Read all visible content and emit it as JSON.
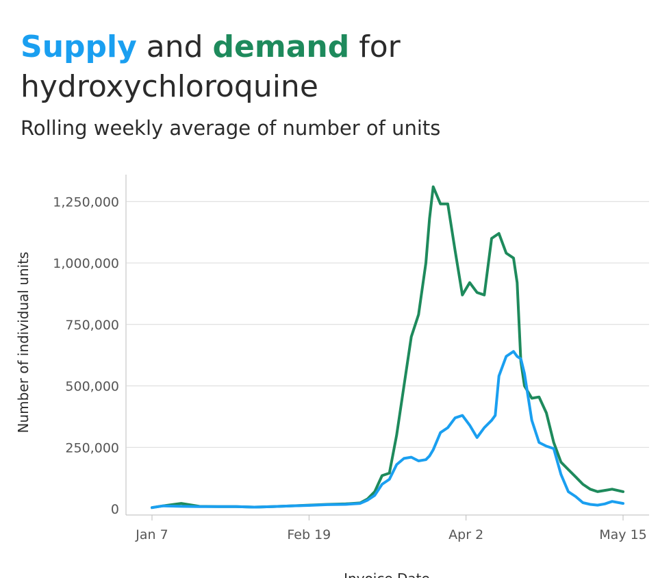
{
  "title": {
    "supply_word": "Supply",
    "and_word": " and ",
    "demand_word": "demand",
    "rest_line1": " for",
    "line2": "hydroxychloroquine"
  },
  "subtitle": "Rolling weekly average of number of units",
  "colors": {
    "supply": "#1a9ff0",
    "demand": "#1e8a5c",
    "grid": "#d9d9d9",
    "axis": "#bbbbbb"
  },
  "chart_data": {
    "type": "line",
    "title": "Supply and demand for hydroxychloroquine",
    "subtitle": "Rolling weekly average of number of units",
    "xlabel": "Invoice Date",
    "ylabel": "Number of individual units",
    "xlim": [
      "2020-01-07",
      "2020-05-15"
    ],
    "ylim": [
      0,
      1350000
    ],
    "x_ticks": [
      {
        "label": "Jan 7",
        "date": "2020-01-07"
      },
      {
        "label": "Feb 19",
        "date": "2020-02-19"
      },
      {
        "label": "Apr 2",
        "date": "2020-04-02"
      },
      {
        "label": "May 15",
        "date": "2020-05-15"
      }
    ],
    "y_ticks": [
      {
        "label": "0",
        "value": 0
      },
      {
        "label": "250,000",
        "value": 250000
      },
      {
        "label": "500,000",
        "value": 500000
      },
      {
        "label": "750,000",
        "value": 750000
      },
      {
        "label": "1,000,000",
        "value": 1000000
      },
      {
        "label": "1,250,000",
        "value": 1250000
      }
    ],
    "grid": true,
    "series": [
      {
        "name": "Supply",
        "color": "#1a9ff0",
        "x": [
          "2020-01-07",
          "2020-01-10",
          "2020-01-15",
          "2020-01-20",
          "2020-01-25",
          "2020-01-30",
          "2020-02-04",
          "2020-02-09",
          "2020-02-14",
          "2020-02-19",
          "2020-02-24",
          "2020-02-29",
          "2020-03-04",
          "2020-03-06",
          "2020-03-08",
          "2020-03-10",
          "2020-03-12",
          "2020-03-14",
          "2020-03-16",
          "2020-03-18",
          "2020-03-20",
          "2020-03-22",
          "2020-03-23",
          "2020-03-24",
          "2020-03-26",
          "2020-03-28",
          "2020-03-30",
          "2020-04-01",
          "2020-04-03",
          "2020-04-05",
          "2020-04-07",
          "2020-04-09",
          "2020-04-10",
          "2020-04-11",
          "2020-04-13",
          "2020-04-15",
          "2020-04-16",
          "2020-04-17",
          "2020-04-18",
          "2020-04-20",
          "2020-04-22",
          "2020-04-24",
          "2020-04-26",
          "2020-04-28",
          "2020-04-30",
          "2020-05-02",
          "2020-05-04",
          "2020-05-06",
          "2020-05-08",
          "2020-05-10",
          "2020-05-12",
          "2020-05-15"
        ],
        "values": [
          5000,
          12000,
          10000,
          9000,
          9000,
          9000,
          7000,
          9000,
          12000,
          14000,
          17000,
          18000,
          22000,
          35000,
          55000,
          100000,
          120000,
          180000,
          205000,
          210000,
          195000,
          200000,
          215000,
          240000,
          310000,
          330000,
          370000,
          380000,
          340000,
          290000,
          330000,
          360000,
          380000,
          540000,
          620000,
          640000,
          620000,
          610000,
          550000,
          360000,
          270000,
          255000,
          245000,
          140000,
          70000,
          50000,
          25000,
          18000,
          15000,
          20000,
          30000,
          22000
        ]
      },
      {
        "name": "Demand",
        "color": "#1e8a5c",
        "x": [
          "2020-01-07",
          "2020-01-10",
          "2020-01-15",
          "2020-01-20",
          "2020-01-25",
          "2020-01-30",
          "2020-02-04",
          "2020-02-09",
          "2020-02-14",
          "2020-02-19",
          "2020-02-24",
          "2020-02-29",
          "2020-03-04",
          "2020-03-06",
          "2020-03-08",
          "2020-03-10",
          "2020-03-12",
          "2020-03-14",
          "2020-03-16",
          "2020-03-18",
          "2020-03-20",
          "2020-03-22",
          "2020-03-23",
          "2020-03-24",
          "2020-03-26",
          "2020-03-28",
          "2020-03-30",
          "2020-04-01",
          "2020-04-03",
          "2020-04-05",
          "2020-04-07",
          "2020-04-09",
          "2020-04-10",
          "2020-04-11",
          "2020-04-13",
          "2020-04-15",
          "2020-04-16",
          "2020-04-17",
          "2020-04-18",
          "2020-04-20",
          "2020-04-22",
          "2020-04-24",
          "2020-04-26",
          "2020-04-28",
          "2020-04-30",
          "2020-05-02",
          "2020-05-04",
          "2020-05-06",
          "2020-05-08",
          "2020-05-10",
          "2020-05-12",
          "2020-05-15"
        ],
        "values": [
          5000,
          12000,
          22000,
          10000,
          9000,
          9000,
          7000,
          9000,
          12000,
          15000,
          18000,
          20000,
          24000,
          40000,
          70000,
          135000,
          145000,
          300000,
          500000,
          700000,
          790000,
          1000000,
          1180000,
          1310000,
          1240000,
          1240000,
          1050000,
          870000,
          920000,
          880000,
          870000,
          1100000,
          1110000,
          1120000,
          1040000,
          1020000,
          920000,
          600000,
          500000,
          450000,
          455000,
          390000,
          270000,
          190000,
          160000,
          130000,
          100000,
          80000,
          70000,
          75000,
          80000,
          70000
        ]
      }
    ]
  }
}
